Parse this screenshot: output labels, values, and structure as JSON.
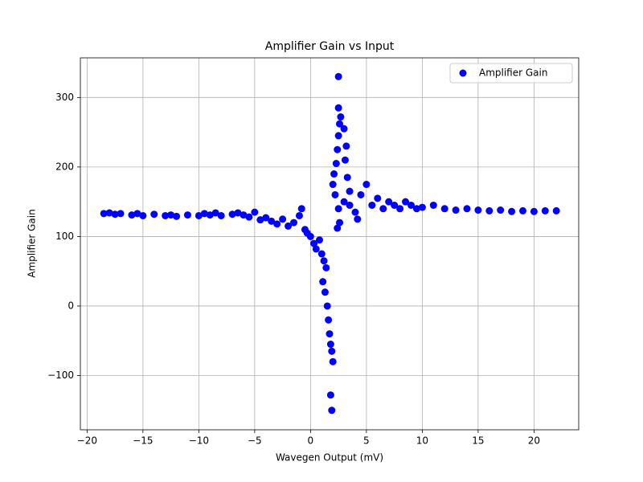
{
  "chart_data": {
    "type": "scatter",
    "title": "Amplifier Gain vs Input",
    "x_label": "Wavegen Output (mV)",
    "y_label": "Amplifier Gain",
    "series": [
      {
        "name": "Amplifier Gain",
        "color": "#0000ff",
        "x": [
          -18.5,
          -18,
          -17.5,
          -17,
          -16,
          -15.5,
          -15,
          -14,
          -13,
          -12.5,
          -12,
          -11,
          -10,
          -9.5,
          -9,
          -8.5,
          -8,
          -7,
          -6.5,
          -6,
          -5.5,
          -5,
          -4.5,
          -4,
          -3.5,
          -3,
          -2.5,
          -2,
          -1.5,
          -1,
          -0.8,
          -0.5,
          -0.3,
          0,
          0.3,
          0.5,
          0.8,
          1,
          1.2,
          1.4,
          1.1,
          1.3,
          1.5,
          1.6,
          1.7,
          1.8,
          1.9,
          2,
          1.8,
          1.9,
          2.4,
          2.6,
          2.5,
          2.2,
          2,
          2.1,
          2.3,
          2.4,
          2.5,
          2.6,
          2.7,
          2.5,
          2.5,
          3,
          3.2,
          3.1,
          3.3,
          3,
          3.5,
          3.5,
          4,
          4.2,
          4.5,
          5,
          5.5,
          6,
          6.5,
          7,
          7.5,
          8,
          8.5,
          9,
          9.5,
          10,
          11,
          12,
          13,
          14,
          15,
          16,
          17,
          18,
          19,
          20,
          21,
          22
        ],
        "values": [
          133,
          134,
          132,
          133,
          131,
          133,
          130,
          132,
          130,
          131,
          129,
          131,
          130,
          133,
          131,
          134,
          130,
          132,
          134,
          131,
          128,
          135,
          124,
          127,
          122,
          118,
          125,
          115,
          120,
          130,
          140,
          110,
          105,
          100,
          90,
          82,
          95,
          75,
          65,
          55,
          35,
          20,
          0,
          -20,
          -40,
          -55,
          -65,
          -80,
          -128,
          -150,
          112,
          120,
          140,
          160,
          175,
          190,
          205,
          225,
          245,
          262,
          272,
          285,
          330,
          255,
          230,
          210,
          185,
          150,
          165,
          145,
          135,
          125,
          160,
          175,
          145,
          155,
          140,
          150,
          145,
          140,
          150,
          145,
          140,
          142,
          145,
          140,
          138,
          140,
          138,
          137,
          138,
          136,
          137,
          136,
          137,
          137
        ]
      }
    ],
    "xlim": [
      -20.6,
      24.0
    ],
    "ylim": [
      -178,
      357
    ],
    "xticks": [
      {
        "value": -20,
        "label": "−20"
      },
      {
        "value": -15,
        "label": "−15"
      },
      {
        "value": -10,
        "label": "−10"
      },
      {
        "value": -5,
        "label": "−5"
      },
      0,
      5,
      10,
      15,
      20
    ],
    "yticks": [
      {
        "value": -100,
        "label": "−100"
      },
      0,
      100,
      200,
      300
    ],
    "grid": true,
    "legend": "upper right"
  }
}
